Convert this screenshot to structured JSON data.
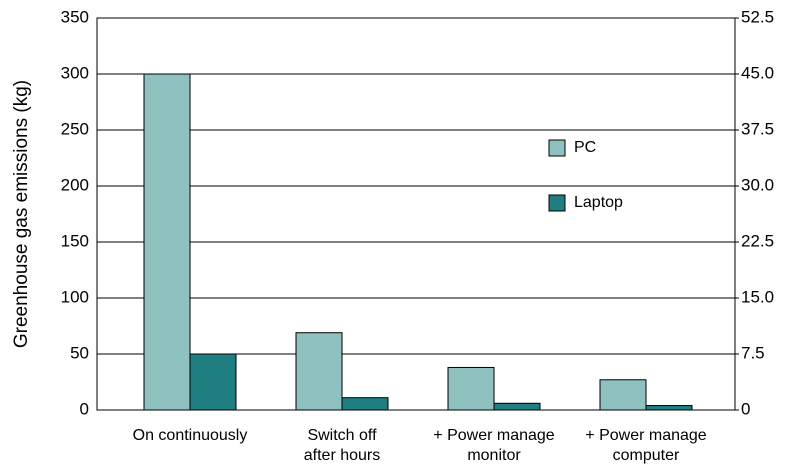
{
  "chart_data": {
    "type": "bar",
    "y_label": "Greenhouse gas emissions (kg)",
    "categories": [
      "On continuously",
      "Switch off\nafter hours",
      "+ Power manage\nmonitor",
      "+ Power manage\ncomputer"
    ],
    "series": [
      {
        "name": "PC",
        "color": "#8fc1c1",
        "values": [
          300,
          69,
          38,
          27
        ]
      },
      {
        "name": "Laptop",
        "color": "#1f7f80",
        "values": [
          50,
          11,
          6,
          4
        ]
      }
    ],
    "ylim": [
      0,
      350
    ],
    "yticks": [
      0,
      50,
      100,
      150,
      200,
      250,
      300,
      350
    ],
    "y2lim": [
      0,
      52.5
    ],
    "y2ticks": [
      0,
      7.5,
      {
        "value": 15,
        "label": "15.0"
      },
      22.5,
      {
        "value": 30,
        "label": "30.0"
      },
      37.5,
      {
        "value": 45,
        "label": "45.0"
      },
      52.5
    ],
    "grid": true
  }
}
